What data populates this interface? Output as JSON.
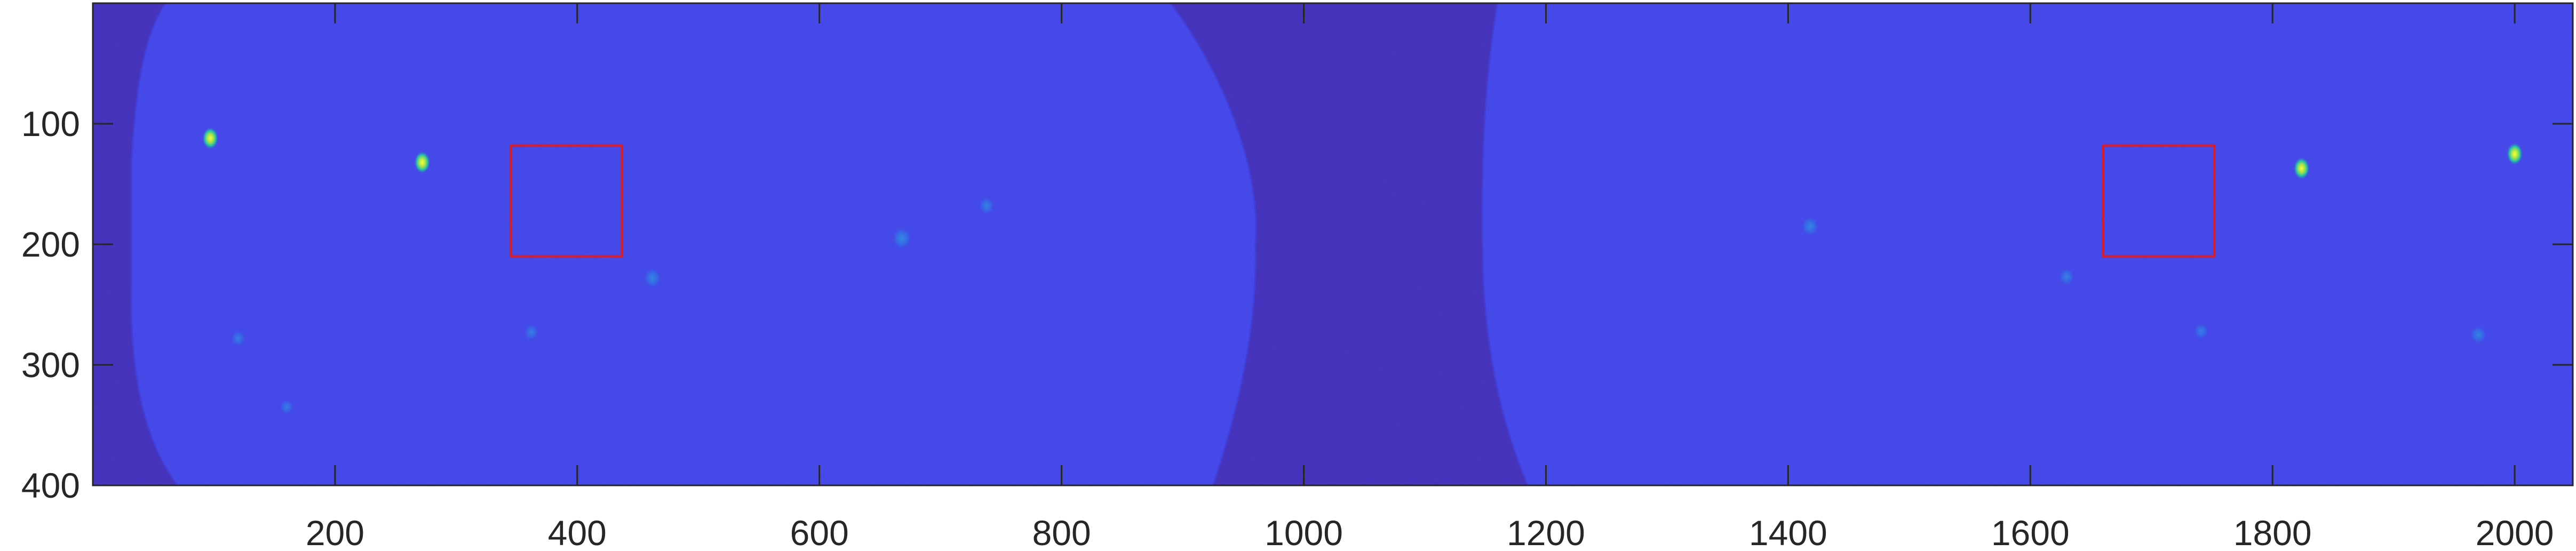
{
  "chart_data": {
    "type": "heatmap",
    "title": "",
    "xlabel": "",
    "ylabel": "",
    "xlim": [
      0,
      2048
    ],
    "ylim": [
      0,
      400
    ],
    "y_direction": "reversed",
    "x_ticks": [
      200,
      400,
      600,
      800,
      1000,
      1200,
      1400,
      1600,
      1800,
      2000
    ],
    "y_ticks": [
      100,
      200,
      300,
      400
    ],
    "x_tick_labels": [
      "200",
      "400",
      "600",
      "800",
      "1000",
      "1200",
      "1400",
      "1600",
      "1800",
      "2000"
    ],
    "y_tick_labels": [
      "100",
      "200",
      "300",
      "400"
    ],
    "grid": false,
    "colormap": "parula",
    "colors": {
      "outside_background": "#3f2bb5",
      "field_background": "#3f42e6",
      "field_edge": "#3b36d4",
      "box_outline": "#e31a1c",
      "axis": "#262626",
      "hot_spot": "#d9ff35",
      "hot_spot_mid": "#26c9a1",
      "warm_spot": "#2f8ee8"
    },
    "regions": [
      {
        "name": "left field",
        "x_range": [
          20,
          960
        ],
        "y_range": [
          0,
          400
        ]
      },
      {
        "name": "right field",
        "x_range": [
          1130,
          2048
        ],
        "y_range": [
          0,
          400
        ]
      }
    ],
    "highlight_boxes": [
      {
        "x": [
          345,
          437
        ],
        "y": [
          118,
          210
        ]
      },
      {
        "x": [
          1660,
          1752
        ],
        "y": [
          118,
          210
        ]
      }
    ],
    "bright_spots": [
      {
        "x": 97,
        "y": 112,
        "level": 1.0
      },
      {
        "x": 272,
        "y": 132,
        "level": 1.0
      },
      {
        "x": 1824,
        "y": 137,
        "level": 0.9
      },
      {
        "x": 2000,
        "y": 125,
        "level": 0.9
      },
      {
        "x": 668,
        "y": 195,
        "level": 0.55
      },
      {
        "x": 462,
        "y": 228,
        "level": 0.45
      },
      {
        "x": 1418,
        "y": 185,
        "level": 0.45
      },
      {
        "x": 1970,
        "y": 275,
        "level": 0.4
      },
      {
        "x": 738,
        "y": 168,
        "level": 0.35
      },
      {
        "x": 1630,
        "y": 227,
        "level": 0.35
      },
      {
        "x": 362,
        "y": 273,
        "level": 0.3
      },
      {
        "x": 120,
        "y": 278,
        "level": 0.3
      },
      {
        "x": 160,
        "y": 335,
        "level": 0.25
      },
      {
        "x": 1741,
        "y": 272,
        "level": 0.3
      }
    ]
  }
}
